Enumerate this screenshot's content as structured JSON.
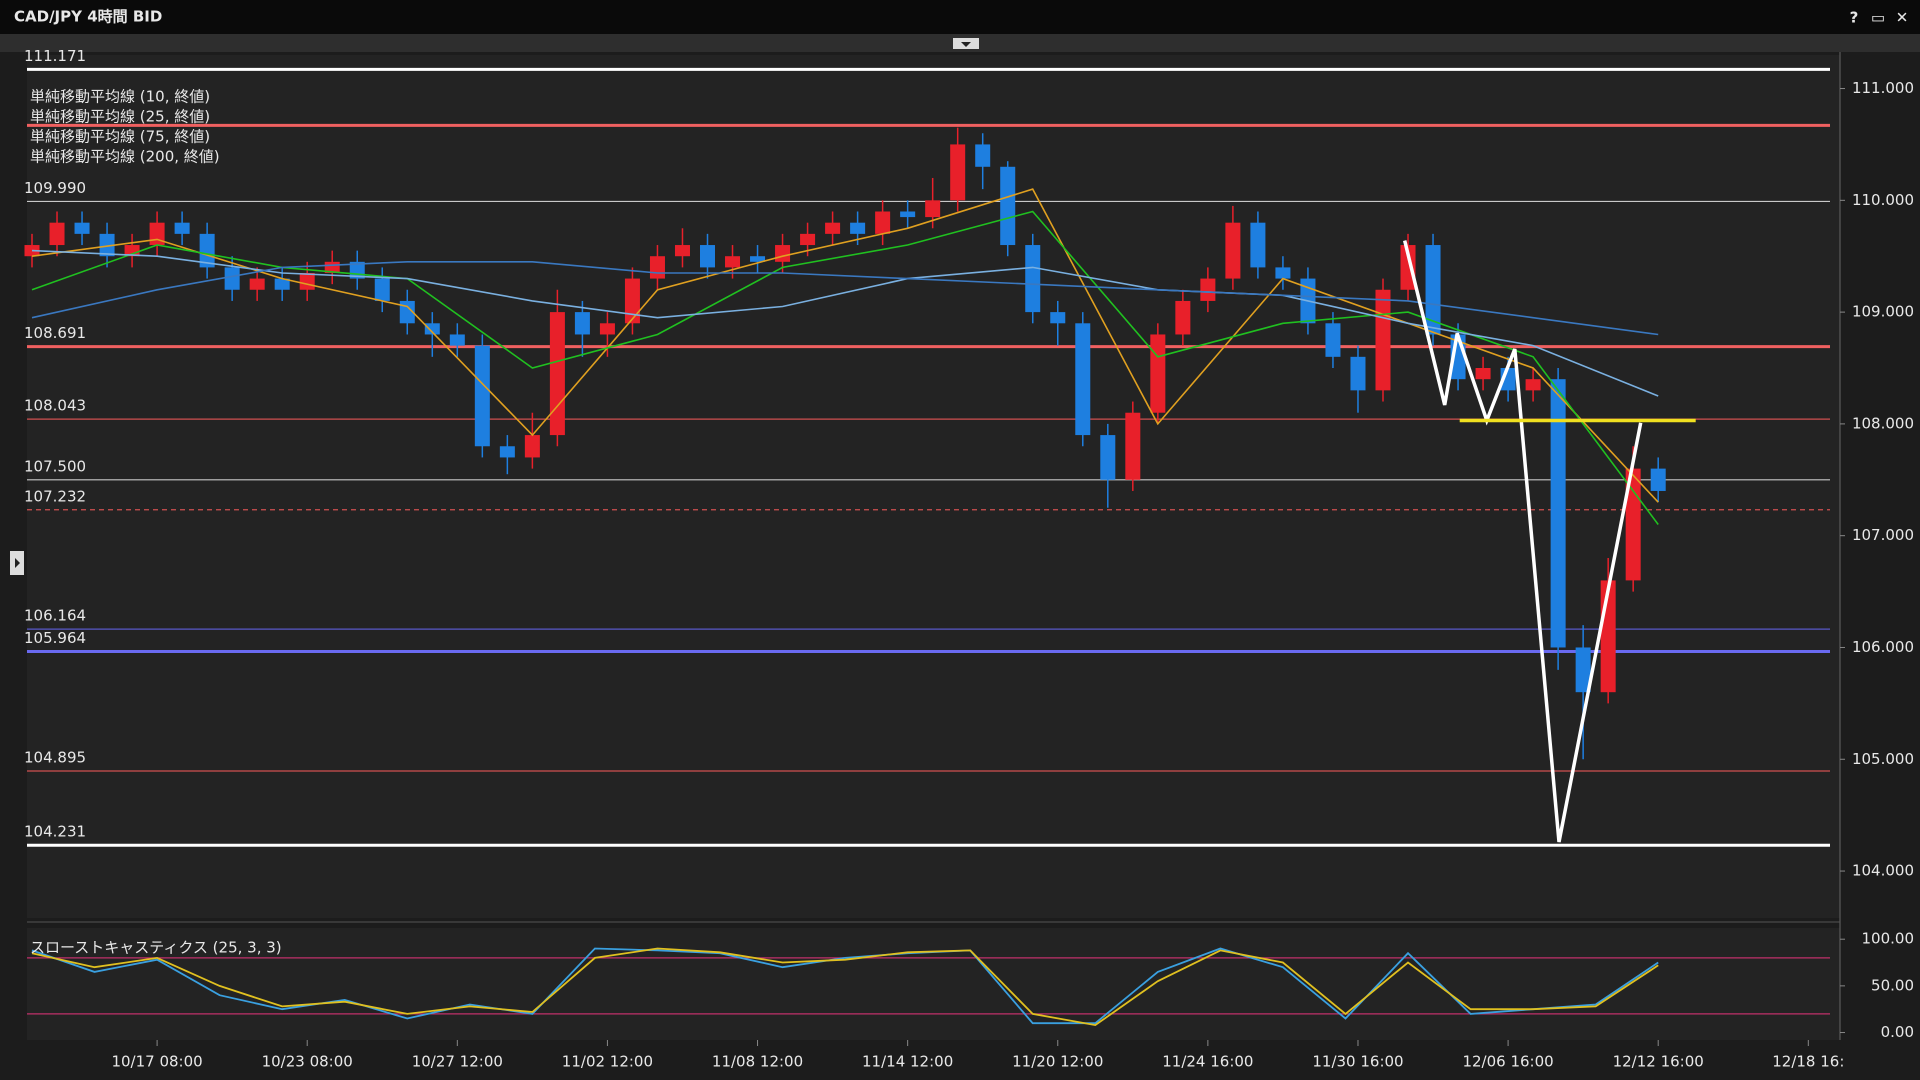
{
  "window": {
    "buttons": [
      "?",
      "▭",
      "✕"
    ]
  },
  "chart_data": [
    {
      "type": "candlestick",
      "title": "CAD/JPY 4時間 BID",
      "x": [
        -30,
        -24,
        -18,
        -12,
        -6,
        0,
        6,
        12,
        18,
        24,
        30,
        36,
        42,
        48,
        54,
        60,
        66,
        72,
        78,
        84,
        90,
        96,
        102,
        108,
        114,
        120,
        126,
        132,
        138,
        144,
        150,
        156,
        162,
        168,
        174,
        180,
        186,
        192,
        198,
        204,
        210,
        216,
        222,
        228,
        234,
        240,
        246,
        252,
        258,
        264,
        270,
        276,
        282,
        288,
        294,
        300,
        306,
        312,
        318,
        324,
        330,
        336,
        342,
        348,
        354,
        360
      ],
      "open": [
        109.5,
        109.6,
        109.8,
        109.7,
        109.5,
        109.6,
        109.8,
        109.7,
        109.4,
        109.2,
        109.3,
        109.2,
        109.35,
        109.45,
        109.3,
        109.1,
        108.9,
        108.8,
        108.7,
        107.8,
        107.7,
        107.9,
        109.0,
        108.8,
        108.9,
        109.3,
        109.5,
        109.6,
        109.4,
        109.5,
        109.45,
        109.6,
        109.7,
        109.8,
        109.7,
        109.9,
        109.85,
        110.0,
        110.5,
        110.3,
        109.6,
        109.0,
        108.9,
        107.9,
        107.5,
        108.1,
        108.8,
        109.1,
        109.3,
        109.8,
        109.4,
        109.3,
        108.9,
        108.6,
        108.3,
        109.2,
        109.6,
        108.8,
        108.4,
        108.5,
        108.3,
        108.4,
        106.0,
        105.6,
        106.6,
        107.6
      ],
      "high": [
        109.7,
        109.9,
        109.9,
        109.8,
        109.7,
        109.9,
        109.9,
        109.8,
        109.5,
        109.4,
        109.4,
        109.45,
        109.55,
        109.55,
        109.4,
        109.2,
        109.0,
        108.9,
        108.8,
        107.9,
        108.1,
        109.2,
        109.1,
        109.0,
        109.4,
        109.6,
        109.75,
        109.7,
        109.6,
        109.6,
        109.7,
        109.8,
        109.9,
        109.9,
        110.0,
        110.0,
        110.2,
        110.65,
        110.6,
        110.35,
        109.7,
        109.1,
        109.0,
        108.0,
        108.2,
        108.9,
        109.2,
        109.4,
        109.95,
        109.9,
        109.5,
        109.4,
        109.0,
        108.7,
        109.3,
        109.7,
        109.7,
        108.9,
        108.6,
        108.6,
        108.5,
        108.5,
        106.2,
        106.8,
        107.8,
        107.7
      ],
      "low": [
        109.4,
        109.5,
        109.6,
        109.4,
        109.4,
        109.5,
        109.6,
        109.3,
        109.1,
        109.1,
        109.1,
        109.1,
        109.25,
        109.2,
        109.0,
        108.8,
        108.6,
        108.6,
        107.7,
        107.55,
        107.6,
        107.8,
        108.6,
        108.6,
        108.8,
        109.2,
        109.4,
        109.3,
        109.3,
        109.35,
        109.35,
        109.5,
        109.6,
        109.6,
        109.6,
        109.75,
        109.75,
        109.9,
        110.1,
        109.5,
        108.9,
        108.7,
        107.8,
        107.25,
        107.4,
        108.0,
        108.7,
        109.0,
        109.2,
        109.3,
        109.2,
        108.8,
        108.5,
        108.1,
        108.2,
        109.1,
        108.7,
        108.3,
        108.3,
        108.2,
        108.2,
        105.8,
        105.0,
        105.5,
        106.5,
        107.3
      ],
      "close": [
        109.6,
        109.8,
        109.7,
        109.5,
        109.6,
        109.8,
        109.7,
        109.4,
        109.2,
        109.3,
        109.2,
        109.35,
        109.45,
        109.3,
        109.1,
        108.9,
        108.8,
        108.7,
        107.8,
        107.7,
        107.9,
        109.0,
        108.8,
        108.9,
        109.3,
        109.5,
        109.6,
        109.4,
        109.5,
        109.45,
        109.6,
        109.7,
        109.8,
        109.7,
        109.9,
        109.85,
        110.0,
        110.5,
        110.3,
        109.6,
        109.0,
        108.9,
        107.9,
        107.5,
        108.1,
        108.8,
        109.1,
        109.3,
        109.8,
        109.4,
        109.3,
        108.9,
        108.6,
        108.3,
        109.2,
        109.6,
        108.8,
        108.4,
        108.5,
        108.3,
        108.4,
        106.0,
        105.6,
        106.6,
        107.6,
        107.4
      ],
      "up_color": "#e8202a",
      "down_color": "#1e7fe0",
      "series": [
        {
          "name": "単純移動平均線 (10, 終値)",
          "color": "#e0a020",
          "x": [
            -30,
            0,
            30,
            60,
            90,
            120,
            150,
            180,
            210,
            240,
            270,
            300,
            330,
            360
          ],
          "values": [
            109.5,
            109.65,
            109.3,
            109.05,
            107.9,
            109.2,
            109.5,
            109.75,
            110.1,
            108.0,
            109.3,
            108.9,
            108.5,
            107.3
          ]
        },
        {
          "name": "単純移動平均線 (25, 終値)",
          "color": "#20c020",
          "x": [
            -30,
            0,
            30,
            60,
            90,
            120,
            150,
            180,
            210,
            240,
            270,
            300,
            330,
            360
          ],
          "values": [
            109.2,
            109.6,
            109.4,
            109.3,
            108.5,
            108.8,
            109.4,
            109.6,
            109.9,
            108.6,
            108.9,
            109.0,
            108.6,
            107.1
          ]
        },
        {
          "name": "単純移動平均線 (75, 終値)",
          "color": "#7ab0e0",
          "x": [
            -30,
            0,
            30,
            60,
            90,
            120,
            150,
            180,
            210,
            240,
            270,
            300,
            330,
            360
          ],
          "values": [
            109.55,
            109.5,
            109.35,
            109.3,
            109.1,
            108.95,
            109.05,
            109.3,
            109.4,
            109.2,
            109.15,
            108.9,
            108.7,
            108.25
          ]
        },
        {
          "name": "単純移動平均線 (200, 終値)",
          "color": "#3a78c0",
          "x": [
            -30,
            0,
            30,
            60,
            90,
            120,
            150,
            180,
            210,
            240,
            270,
            300,
            330,
            360
          ],
          "values": [
            108.95,
            109.2,
            109.4,
            109.45,
            109.45,
            109.35,
            109.35,
            109.3,
            109.25,
            109.2,
            109.15,
            109.1,
            108.95,
            108.8
          ]
        }
      ],
      "levels": [
        {
          "value": 111.171,
          "label": "111.171",
          "color": "#ffffff",
          "style": "thick"
        },
        {
          "value": 110.67,
          "color": "#f06060",
          "style": "thick"
        },
        {
          "value": 109.99,
          "label": "109.990",
          "color": "#c8c8c8",
          "style": "thin"
        },
        {
          "value": 108.691,
          "label": "108.691",
          "color": "#f06060",
          "style": "thick"
        },
        {
          "value": 108.043,
          "label": "108.043",
          "color": "#d05050",
          "style": "thin"
        },
        {
          "value": 107.5,
          "label": "107.500",
          "color": "#c8c8c8",
          "style": "thin"
        },
        {
          "value": 107.232,
          "label": "107.232",
          "color": "#d05050",
          "style": "dashed"
        },
        {
          "value": 106.164,
          "label": "106.164",
          "color": "#5858c8",
          "style": "thin"
        },
        {
          "value": 105.964,
          "label": "105.964",
          "color": "#6a6af0",
          "style": "thick"
        },
        {
          "value": 104.895,
          "label": "104.895",
          "color": "#d05050",
          "style": "thin"
        },
        {
          "value": 104.231,
          "label": "104.231",
          "color": "#ffffff",
          "style": "thick"
        }
      ],
      "drawings": [
        {
          "color": "#ffffff",
          "x": [
            299.2,
            308.8,
            311.8,
            318.9,
            325.6,
            336.2,
            355.8
          ],
          "y": [
            109.64,
            108.17,
            108.81,
            108.03,
            108.67,
            104.26,
            108.01
          ]
        },
        {
          "color": "#f0e020",
          "x": [
            312.4,
            369
          ],
          "y": [
            108.03,
            108.03
          ]
        }
      ],
      "xlim": [
        -31.2,
        403.6
      ],
      "ylim": [
        103.58,
        111.3
      ],
      "yticks": [
        {
          "value": 104,
          "label": "104.000"
        },
        {
          "value": 105,
          "label": "105.000"
        },
        {
          "value": 106,
          "label": "106.000"
        },
        {
          "value": 107,
          "label": "107.000"
        },
        {
          "value": 108,
          "label": "108.000"
        },
        {
          "value": 109,
          "label": "109.000"
        },
        {
          "value": 110,
          "label": "110.000"
        },
        {
          "value": 111,
          "label": "111.000"
        }
      ],
      "xticks": [
        {
          "value": 0,
          "label": "10/17 08:00"
        },
        {
          "value": 36,
          "label": "10/23 08:00"
        },
        {
          "value": 72,
          "label": "10/27 12:00"
        },
        {
          "value": 108,
          "label": "11/02 12:00"
        },
        {
          "value": 144,
          "label": "11/08 12:00"
        },
        {
          "value": 180,
          "label": "11/14 12:00"
        },
        {
          "value": 216,
          "label": "11/20 12:00"
        },
        {
          "value": 252,
          "label": "11/24 16:00"
        },
        {
          "value": 288,
          "label": "11/30 16:00"
        },
        {
          "value": 324,
          "label": "12/06 16:00"
        },
        {
          "value": 360,
          "label": "12/12 16:00"
        },
        {
          "value": 396,
          "label": "12/18 16:"
        }
      ]
    },
    {
      "type": "line",
      "title": "スローストキャスティクス (25, 3, 3)",
      "x": [
        -30,
        -15,
        0,
        15,
        30,
        45,
        60,
        75,
        90,
        105,
        120,
        135,
        150,
        165,
        180,
        195,
        210,
        225,
        240,
        255,
        270,
        285,
        300,
        315,
        330,
        345,
        360
      ],
      "series": [
        {
          "color": "#3aa0e0",
          "values": [
            88,
            65,
            78,
            40,
            25,
            35,
            15,
            30,
            20,
            90,
            88,
            85,
            70,
            80,
            85,
            88,
            10,
            10,
            65,
            90,
            70,
            15,
            85,
            20,
            25,
            30,
            75
          ]
        },
        {
          "color": "#e0c020",
          "values": [
            85,
            70,
            80,
            50,
            28,
            33,
            20,
            28,
            22,
            80,
            90,
            86,
            75,
            78,
            86,
            88,
            20,
            8,
            55,
            88,
            75,
            20,
            75,
            25,
            25,
            28,
            72
          ]
        }
      ],
      "levels": [
        {
          "value": 80,
          "color": "#c0306a"
        },
        {
          "value": 20,
          "color": "#c0306a"
        }
      ],
      "xlim": [
        -31.2,
        403.6
      ],
      "ylim": [
        -8,
        112
      ],
      "yticks": [
        {
          "value": 0,
          "label": "0.00"
        },
        {
          "value": 50,
          "label": "50.00"
        },
        {
          "value": 100,
          "label": "100.00"
        }
      ]
    }
  ]
}
